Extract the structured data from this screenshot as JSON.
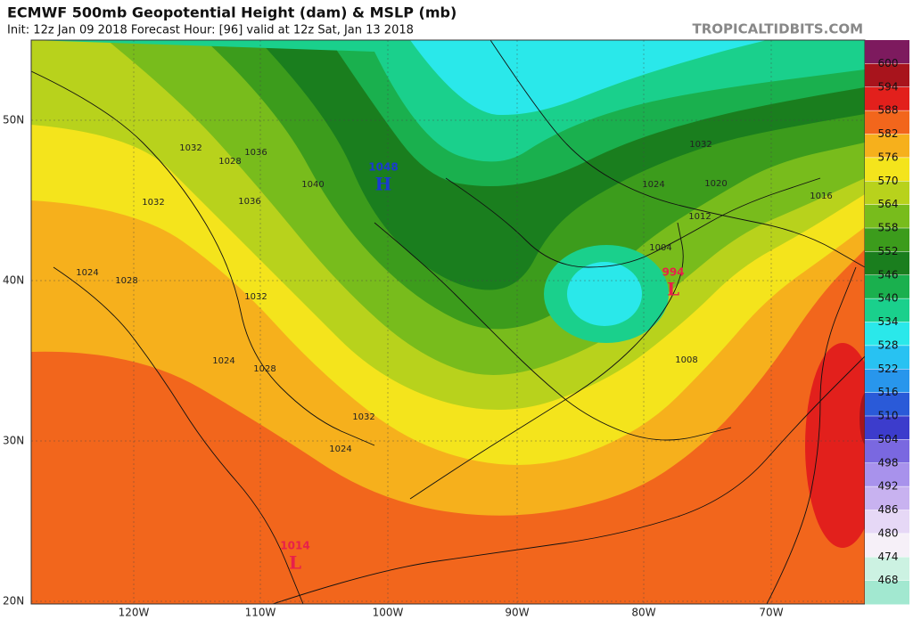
{
  "title": "ECMWF 500mb Geopotential Height (dam) & MSLP (mb)",
  "subtitle": "Init: 12z Jan 09 2018   Forecast Hour: [96]   valid at 12z Sat, Jan 13 2018",
  "brand": "TROPICALTIDBITS.COM",
  "lat_labels": [
    "50N",
    "40N",
    "30N",
    "20N"
  ],
  "lon_labels": [
    "120W",
    "110W",
    "100W",
    "90W",
    "80W",
    "70W"
  ],
  "colorbar": {
    "levels": [
      600,
      594,
      588,
      582,
      576,
      570,
      564,
      558,
      552,
      546,
      540,
      534,
      528,
      522,
      516,
      510,
      504,
      498,
      492,
      486,
      480,
      474,
      468
    ],
    "colors": [
      "#7d1a5e",
      "#a8141c",
      "#e2201c",
      "#f2661c",
      "#f6b01c",
      "#f4e41c",
      "#b8d21c",
      "#78bc1c",
      "#3c9c1c",
      "#1a7e1e",
      "#1ab04e",
      "#1ad08c",
      "#2ae8ea",
      "#28c2f2",
      "#2896ec",
      "#2a5ad8",
      "#3c3ccc",
      "#7a68e0",
      "#a892ec",
      "#c8b2f0",
      "#e6d8f6",
      "#f6f0f8",
      "#ccf2e2",
      "#a2e8d0"
    ]
  },
  "contour_labels": [
    1032,
    1028,
    1036,
    1040,
    1036,
    1032,
    1024,
    1028,
    1032,
    1024,
    1028,
    1032,
    1024,
    1032,
    1024,
    1020,
    1016,
    1012,
    1004,
    1008
  ],
  "pressure_centers": [
    {
      "symbol": "H",
      "pressure": 1048
    },
    {
      "symbol": "L",
      "pressure": 994
    },
    {
      "symbol": "L",
      "pressure": 1014
    }
  ]
}
